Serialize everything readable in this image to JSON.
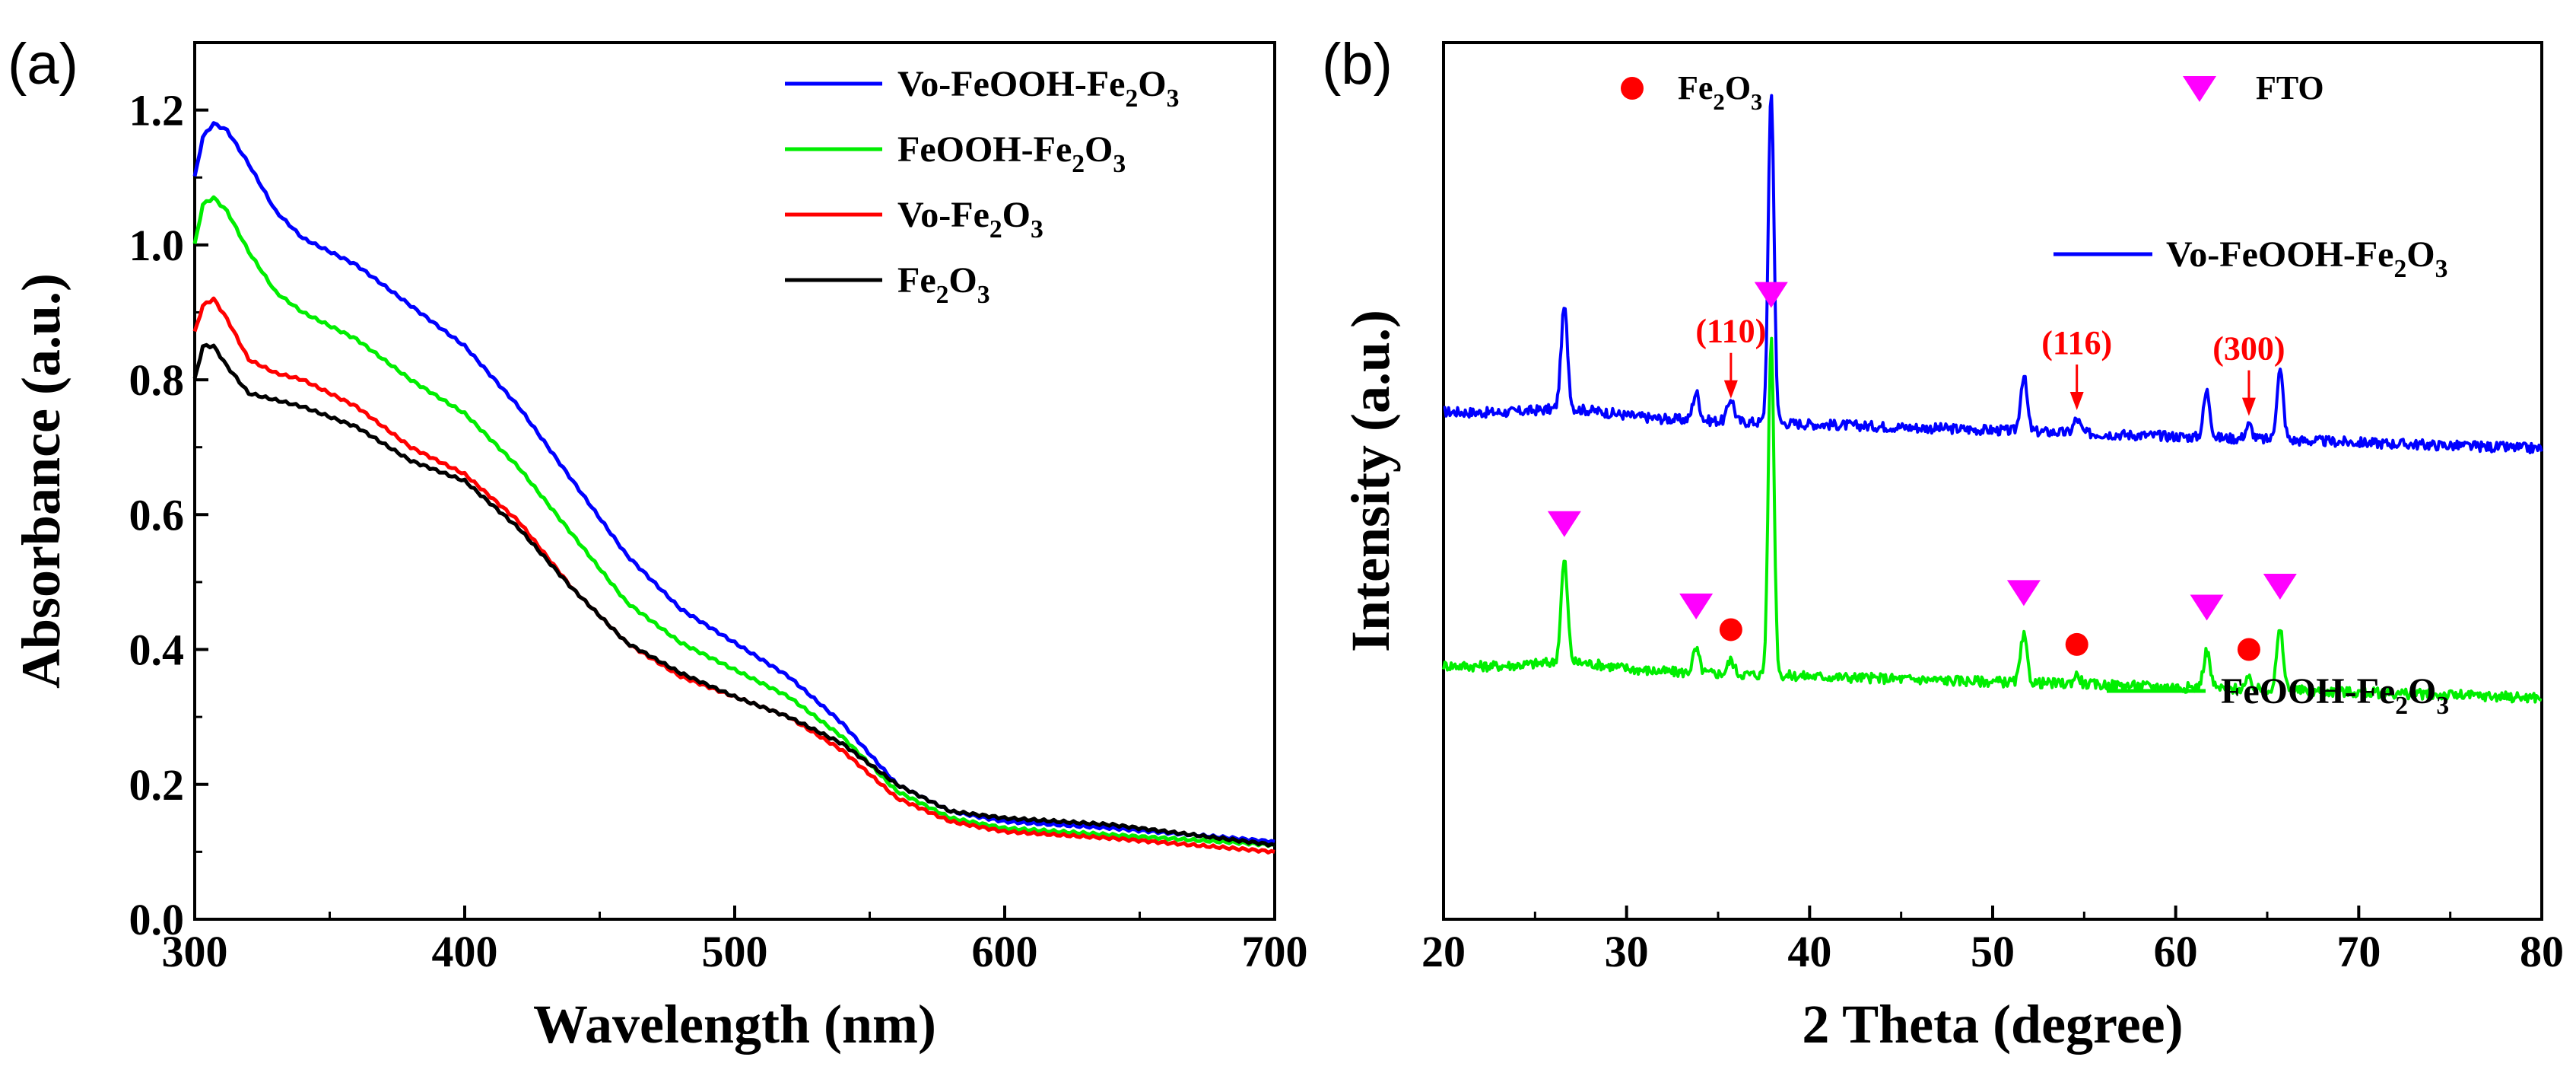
{
  "chart_data": [
    {
      "panel": "(a)",
      "type": "line",
      "xlabel": "Wavelength (nm)",
      "ylabel": "Absorbance (a.u.)",
      "xlim": [
        300,
        700
      ],
      "ylim": [
        0.0,
        1.3
      ],
      "xticks": [
        300,
        400,
        500,
        600,
        700
      ],
      "yticks": [
        0.0,
        0.2,
        0.4,
        0.6,
        0.8,
        1.0,
        1.2
      ],
      "ytick_labels": [
        "0.0",
        "0.2",
        "0.4",
        "0.6",
        "0.8",
        "1.0",
        "1.2"
      ],
      "legend_position": "top-right",
      "series": [
        {
          "name": "Vo-FeOOH-Fe2O3",
          "base": "Vo-FeOOH-Fe",
          "sub1": "2",
          "mid": "O",
          "sub2": "3",
          "color": "#0000ff",
          "x": [
            300,
            303,
            307,
            312,
            320,
            330,
            340,
            360,
            380,
            400,
            420,
            440,
            460,
            480,
            500,
            520,
            540,
            560,
            580,
            600,
            640,
            700
          ],
          "y": [
            1.1,
            1.16,
            1.18,
            1.17,
            1.12,
            1.05,
            1.01,
            0.97,
            0.91,
            0.85,
            0.76,
            0.65,
            0.54,
            0.46,
            0.41,
            0.36,
            0.29,
            0.2,
            0.16,
            0.145,
            0.135,
            0.115
          ]
        },
        {
          "name": "FeOOH-Fe2O3",
          "base": "FeOOH-Fe",
          "sub1": "2",
          "mid": "O",
          "sub2": "3",
          "color": "#00ee00",
          "x": [
            300,
            303,
            307,
            312,
            320,
            330,
            340,
            360,
            380,
            400,
            420,
            440,
            460,
            480,
            500,
            520,
            540,
            560,
            580,
            600,
            640,
            700
          ],
          "y": [
            1.0,
            1.06,
            1.07,
            1.05,
            0.99,
            0.93,
            0.9,
            0.86,
            0.8,
            0.75,
            0.67,
            0.57,
            0.47,
            0.41,
            0.37,
            0.33,
            0.27,
            0.19,
            0.15,
            0.135,
            0.125,
            0.11
          ]
        },
        {
          "name": "Vo-Fe2O3",
          "base": "Vo-Fe",
          "sub1": "2",
          "mid": "O",
          "sub2": "3",
          "color": "#ff0000",
          "x": [
            300,
            303,
            307,
            312,
            320,
            330,
            340,
            360,
            380,
            400,
            420,
            440,
            460,
            480,
            500,
            520,
            540,
            560,
            580,
            600,
            640,
            700
          ],
          "y": [
            0.87,
            0.91,
            0.92,
            0.89,
            0.83,
            0.81,
            0.8,
            0.76,
            0.7,
            0.66,
            0.59,
            0.49,
            0.41,
            0.36,
            0.33,
            0.3,
            0.25,
            0.18,
            0.145,
            0.13,
            0.12,
            0.1
          ]
        },
        {
          "name": "Fe2O3",
          "base": "Fe",
          "sub1": "2",
          "mid": "O",
          "sub2": "3",
          "color": "#000000",
          "x": [
            300,
            303,
            307,
            312,
            320,
            330,
            340,
            360,
            380,
            400,
            420,
            440,
            460,
            480,
            500,
            520,
            540,
            560,
            580,
            600,
            640,
            700
          ],
          "y": [
            0.8,
            0.85,
            0.85,
            0.82,
            0.78,
            0.77,
            0.76,
            0.73,
            0.68,
            0.65,
            0.58,
            0.49,
            0.41,
            0.365,
            0.33,
            0.3,
            0.26,
            0.2,
            0.16,
            0.15,
            0.14,
            0.11
          ]
        }
      ]
    },
    {
      "panel": "(b)",
      "type": "line",
      "xlabel": "2 Theta (degree)",
      "ylabel": "Intensity (a.u.)",
      "xlim": [
        20,
        80
      ],
      "xticks": [
        20,
        30,
        40,
        50,
        60,
        70,
        80
      ],
      "yticks_shown": false,
      "marker_legend": [
        {
          "label_base": "Fe",
          "sub1": "2",
          "mid": "O",
          "sub2": "3",
          "marker": "circle",
          "color": "#ff0000"
        },
        {
          "label": "FTO",
          "marker": "triangle-down",
          "color": "#ff00ff"
        }
      ],
      "series": [
        {
          "name": "Vo-FeOOH-Fe2O3",
          "base": "Vo-FeOOH-Fe",
          "sub1": "2",
          "mid": "O",
          "sub2": "3",
          "color": "#0000ff",
          "baseline_start": 0.5,
          "baseline_end": 0.42,
          "peaks": [
            [
              26.6,
              0.22
            ],
            [
              33.8,
              0.06
            ],
            [
              35.7,
              0.05
            ],
            [
              37.9,
              0.72
            ],
            [
              51.7,
              0.12
            ],
            [
              54.6,
              0.03
            ],
            [
              61.7,
              0.1
            ],
            [
              64.0,
              0.03
            ],
            [
              65.7,
              0.15
            ]
          ]
        },
        {
          "name": "FeOOH-Fe2O3",
          "base": "FeOOH-Fe",
          "sub1": "2",
          "mid": "O",
          "sub2": "3",
          "color": "#00ee00",
          "baseline_start": -0.05,
          "baseline_end": -0.12,
          "peaks": [
            [
              26.6,
              0.22
            ],
            [
              33.8,
              0.05
            ],
            [
              35.7,
              0.03
            ],
            [
              37.9,
              0.73
            ],
            [
              51.7,
              0.1
            ],
            [
              54.6,
              0.02
            ],
            [
              61.7,
              0.08
            ],
            [
              64.0,
              0.02
            ],
            [
              65.7,
              0.13
            ]
          ]
        }
      ],
      "annotations": [
        {
          "text": "(110)",
          "x": 35.7
        },
        {
          "text": "(116)",
          "x": 54.6
        },
        {
          "text": "(300)",
          "x": 64.0
        }
      ],
      "fto_markers_x": [
        26.6,
        33.8,
        37.9,
        51.7,
        61.7,
        65.7
      ],
      "fe2o3_markers_x": [
        35.7,
        54.6,
        64.0
      ]
    }
  ]
}
